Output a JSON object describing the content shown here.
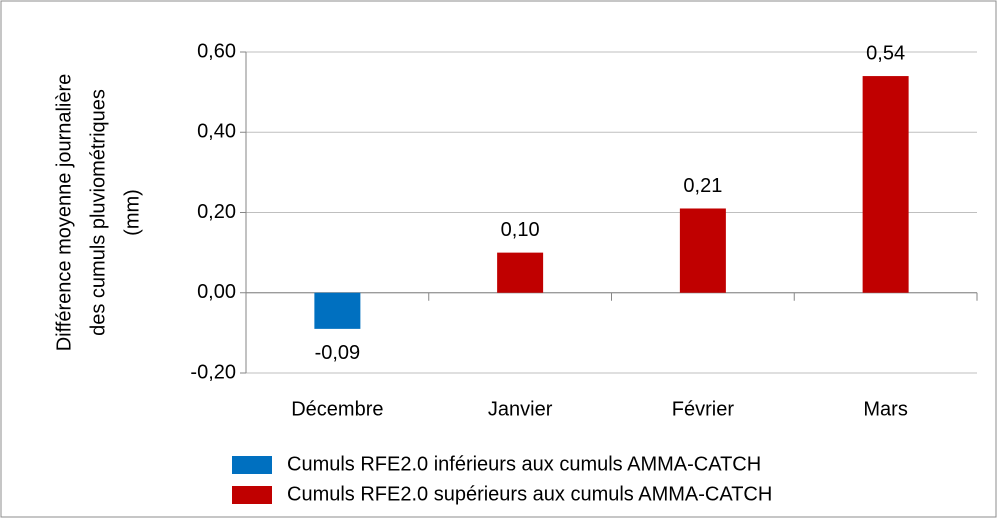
{
  "chart_data": {
    "type": "bar",
    "ylabel": [
      "Différence moyenne journalière",
      "des cumuls pluviométriques",
      "(mm)"
    ],
    "categories": [
      "Décembre",
      "Janvier",
      "Février",
      "Mars"
    ],
    "series": [
      {
        "name": "Cumuls RFE2.0 inférieurs aux cumuls AMMA-CATCH",
        "color": "#0070c0",
        "values": [
          -0.09,
          null,
          null,
          null
        ],
        "value_labels": [
          "-0,09",
          null,
          null,
          null
        ]
      },
      {
        "name": "Cumuls RFE2.0 supérieurs aux cumuls AMMA-CATCH",
        "color": "#c00000",
        "values": [
          null,
          0.1,
          0.21,
          0.54
        ],
        "value_labels": [
          null,
          "0,10",
          "0,21",
          "0,54"
        ]
      }
    ],
    "ylim": [
      -0.2,
      0.6
    ],
    "yticks": [
      {
        "value": -0.2,
        "label": "-0,20"
      },
      {
        "value": 0,
        "label": "0,00"
      },
      {
        "value": 0.2,
        "label": "0,20"
      },
      {
        "value": 0.4,
        "label": "0,40"
      },
      {
        "value": 0.6,
        "label": "0,60"
      }
    ],
    "grid": true,
    "legend": "bottom"
  }
}
